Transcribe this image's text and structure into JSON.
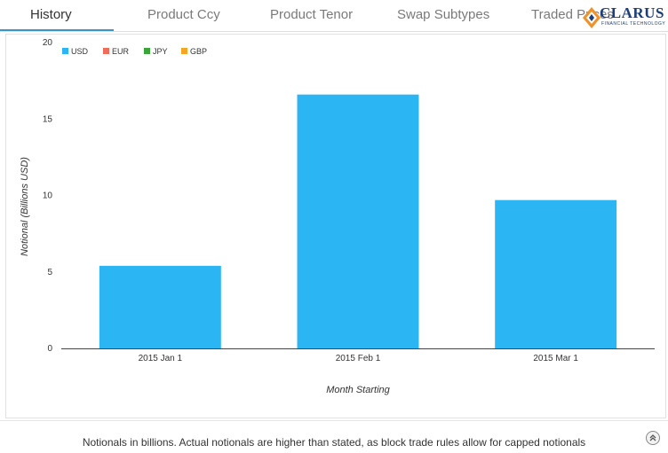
{
  "tabs": [
    {
      "label": "History",
      "active": true
    },
    {
      "label": "Product Ccy",
      "active": false
    },
    {
      "label": "Product Tenor",
      "active": false
    },
    {
      "label": "Swap Subtypes",
      "active": false
    },
    {
      "label": "Traded Prices",
      "active": false
    }
  ],
  "logo": {
    "text": "CLARUS",
    "subtitle": "FINANCIAL TECHNOLOGY"
  },
  "chart_data": {
    "type": "bar",
    "categories": [
      "2015 Jan 1",
      "2015 Feb 1",
      "2015 Mar 1"
    ],
    "series": [
      {
        "name": "USD",
        "color": "#2bb5f3",
        "values": [
          5.4,
          16.6,
          9.7
        ]
      },
      {
        "name": "EUR",
        "color": "#ef6b5a",
        "values": [
          0,
          0,
          0
        ]
      },
      {
        "name": "JPY",
        "color": "#3aa63a",
        "values": [
          0,
          0,
          0
        ]
      },
      {
        "name": "GBP",
        "color": "#f5a623",
        "values": [
          0,
          0,
          0
        ]
      }
    ],
    "title": "",
    "xlabel": "Month Starting",
    "ylabel": "Notional (Billions USD)",
    "ylim": [
      0,
      20
    ],
    "yticks": [
      0,
      5,
      10,
      15,
      20
    ],
    "legend_position": "top-left",
    "grid": false
  },
  "footer": {
    "note": "Notionals in billions. Actual notionals are higher than stated, as block trade rules allow for capped notionals"
  }
}
